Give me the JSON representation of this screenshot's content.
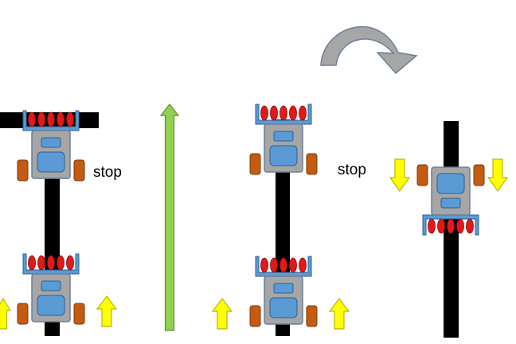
{
  "labels": {
    "stop_left": "stop",
    "stop_right": "stop"
  },
  "colors": {
    "track": "#000000",
    "robot_body": "#a6a6a6",
    "robot_outline": "#6b7f99",
    "robot_panel": "#5b9bd5",
    "panel_outline": "#2e5f8f",
    "wheel": "#c55a11",
    "wheel_outline": "#7a3a0a",
    "roller": "#e0191b",
    "bracket": "#5b9bd5",
    "arrow_yellow": "#ffff00",
    "arrow_yellow_outline": "#b8b800",
    "arrow_green": "#92d050",
    "arrow_green_outline": "#5b8f2e",
    "rotate_arrow": "#a6a6a6",
    "rotate_arrow_outline": "#6b7f99"
  },
  "icons": {
    "forward": "up-arrow-icon",
    "downward": "down-arrow-icon",
    "rotate": "curved-rotate-arrow-icon"
  }
}
